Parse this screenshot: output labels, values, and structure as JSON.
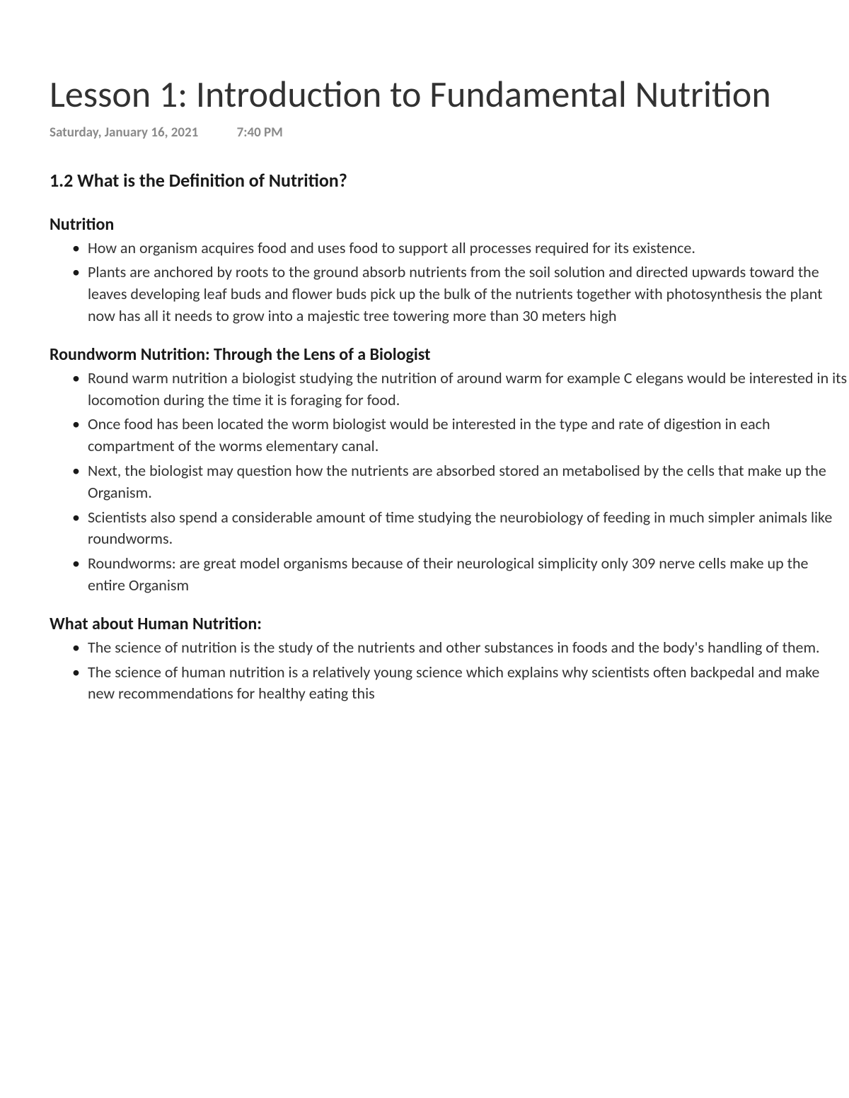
{
  "title": "Lesson 1: Introduction to Fundamental Nutrition",
  "meta": {
    "date": "Saturday, January 16, 2021",
    "time": "7:40 PM"
  },
  "section_heading": "1.2 What is the Definition of Nutrition?",
  "subsections": [
    {
      "heading": "Nutrition",
      "bullets": [
        "How an organism acquires food and uses food to support all processes required for its existence.",
        "Plants are anchored by roots to the ground absorb nutrients from the soil solution and directed upwards toward the leaves developing leaf buds and flower buds pick up the bulk of the nutrients together with photosynthesis the plant now has all it needs to grow into a majestic tree towering more than 30 meters high"
      ]
    },
    {
      "heading": "Roundworm Nutrition: Through the Lens of a Biologist",
      "bullets": [
        "Round warm nutrition a biologist studying the nutrition of around warm for example C elegans would be interested in its locomotion during the time it is foraging for food.",
        "Once food has been located the worm biologist would be interested in the type and rate of digestion in each compartment of the worms elementary canal.",
        "Next, the biologist may question how the nutrients are absorbed stored an metabolised by the cells that make up the Organism.",
        "Scientists also spend a considerable amount of time studying the neurobiology of feeding in much simpler animals like roundworms.",
        "Roundworms: are great model organisms because of their neurological simplicity only 309 nerve cells make up the entire Organism"
      ]
    },
    {
      "heading": "What about Human Nutrition:",
      "bullets": [
        "The science of nutrition is the study of the nutrients and other substances in foods and the body's handling of them.",
        "The science of human nutrition is a relatively young science which explains why scientists often backpedal and make new recommendations for healthy eating this"
      ]
    }
  ],
  "colors": {
    "background": "#ffffff",
    "body_text": "#323232",
    "heading_text": "#1a1a1a",
    "meta_text": "#8a8a8a"
  },
  "typography": {
    "title_fontsize": 52,
    "title_weight": 300,
    "section_heading_fontsize": 26,
    "section_heading_weight": 700,
    "subsection_heading_fontsize": 24,
    "subsection_heading_weight": 700,
    "body_fontsize": 22,
    "meta_fontsize": 19,
    "font_family": "Calibri"
  }
}
